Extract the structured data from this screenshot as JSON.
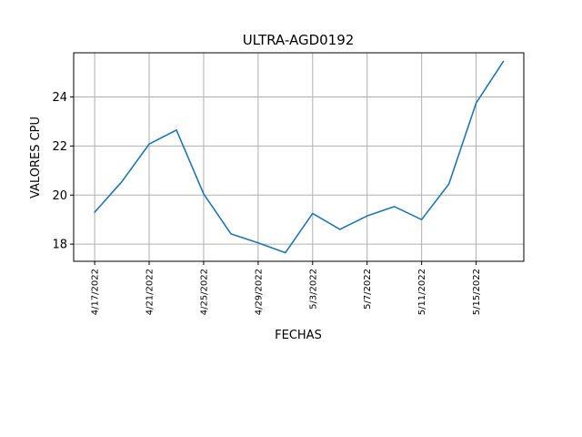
{
  "chart_data": {
    "type": "line",
    "title": "ULTRA-AGD0192",
    "xlabel": "FECHAS",
    "ylabel": "VALORES CPU",
    "grid": true,
    "x": [
      "2022-04-17",
      "2022-04-19",
      "2022-04-21",
      "2022-04-23",
      "2022-04-25",
      "2022-04-27",
      "2022-04-29",
      "2022-05-01",
      "2022-05-03",
      "2022-05-05",
      "2022-05-07",
      "2022-05-09",
      "2022-05-11",
      "2022-05-13",
      "2022-05-15",
      "2022-05-17"
    ],
    "series": [
      {
        "values": [
          19.3,
          20.55,
          22.08,
          22.65,
          20.05,
          18.42,
          18.05,
          17.65,
          19.25,
          18.6,
          19.15,
          19.53,
          19.0,
          20.45,
          23.75,
          25.45
        ],
        "color": "#1f77b4"
      }
    ],
    "x_ticks": [
      "4/17/2022",
      "4/21/2022",
      "4/25/2022",
      "4/29/2022",
      "5/3/2022",
      "5/7/2022",
      "5/11/2022",
      "5/15/2022"
    ],
    "y_ticks": [
      "18",
      "20",
      "22",
      "24"
    ],
    "xlim": [
      "2022-04-15T11:00",
      "2022-05-18T12:00"
    ],
    "ylim": [
      17.3,
      25.8
    ]
  }
}
